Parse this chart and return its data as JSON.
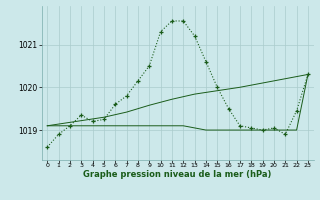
{
  "x": [
    0,
    1,
    2,
    3,
    4,
    5,
    6,
    7,
    8,
    9,
    10,
    11,
    12,
    13,
    14,
    15,
    16,
    17,
    18,
    19,
    20,
    21,
    22,
    23
  ],
  "line1": [
    1018.6,
    1018.9,
    1019.1,
    1019.35,
    1019.2,
    1019.25,
    1019.6,
    1019.8,
    1020.15,
    1020.5,
    1021.3,
    1021.55,
    1021.55,
    1021.2,
    1020.6,
    1020.0,
    1019.5,
    1019.1,
    1019.05,
    1019.0,
    1019.05,
    1018.9,
    1019.45,
    1020.3
  ],
  "line2": [
    1019.1,
    1019.1,
    1019.1,
    1019.1,
    1019.1,
    1019.1,
    1019.1,
    1019.1,
    1019.1,
    1019.1,
    1019.1,
    1019.1,
    1019.1,
    1019.05,
    1019.0,
    1019.0,
    1019.0,
    1019.0,
    1019.0,
    1019.0,
    1019.0,
    1019.0,
    1019.0,
    1020.3
  ],
  "line3": [
    1019.1,
    1019.14,
    1019.18,
    1019.22,
    1019.26,
    1019.3,
    1019.36,
    1019.42,
    1019.5,
    1019.58,
    1019.65,
    1019.72,
    1019.78,
    1019.84,
    1019.88,
    1019.92,
    1019.96,
    1020.0,
    1020.05,
    1020.1,
    1020.15,
    1020.2,
    1020.25,
    1020.3
  ],
  "bg_color": "#cce8ea",
  "grid_color": "#aacccc",
  "line_color": "#1a5c1a",
  "xlabel": "Graphe pression niveau de la mer (hPa)",
  "yticks": [
    1019,
    1020,
    1021
  ],
  "ylim": [
    1018.3,
    1021.9
  ],
  "xlim": [
    -0.5,
    23.5
  ]
}
